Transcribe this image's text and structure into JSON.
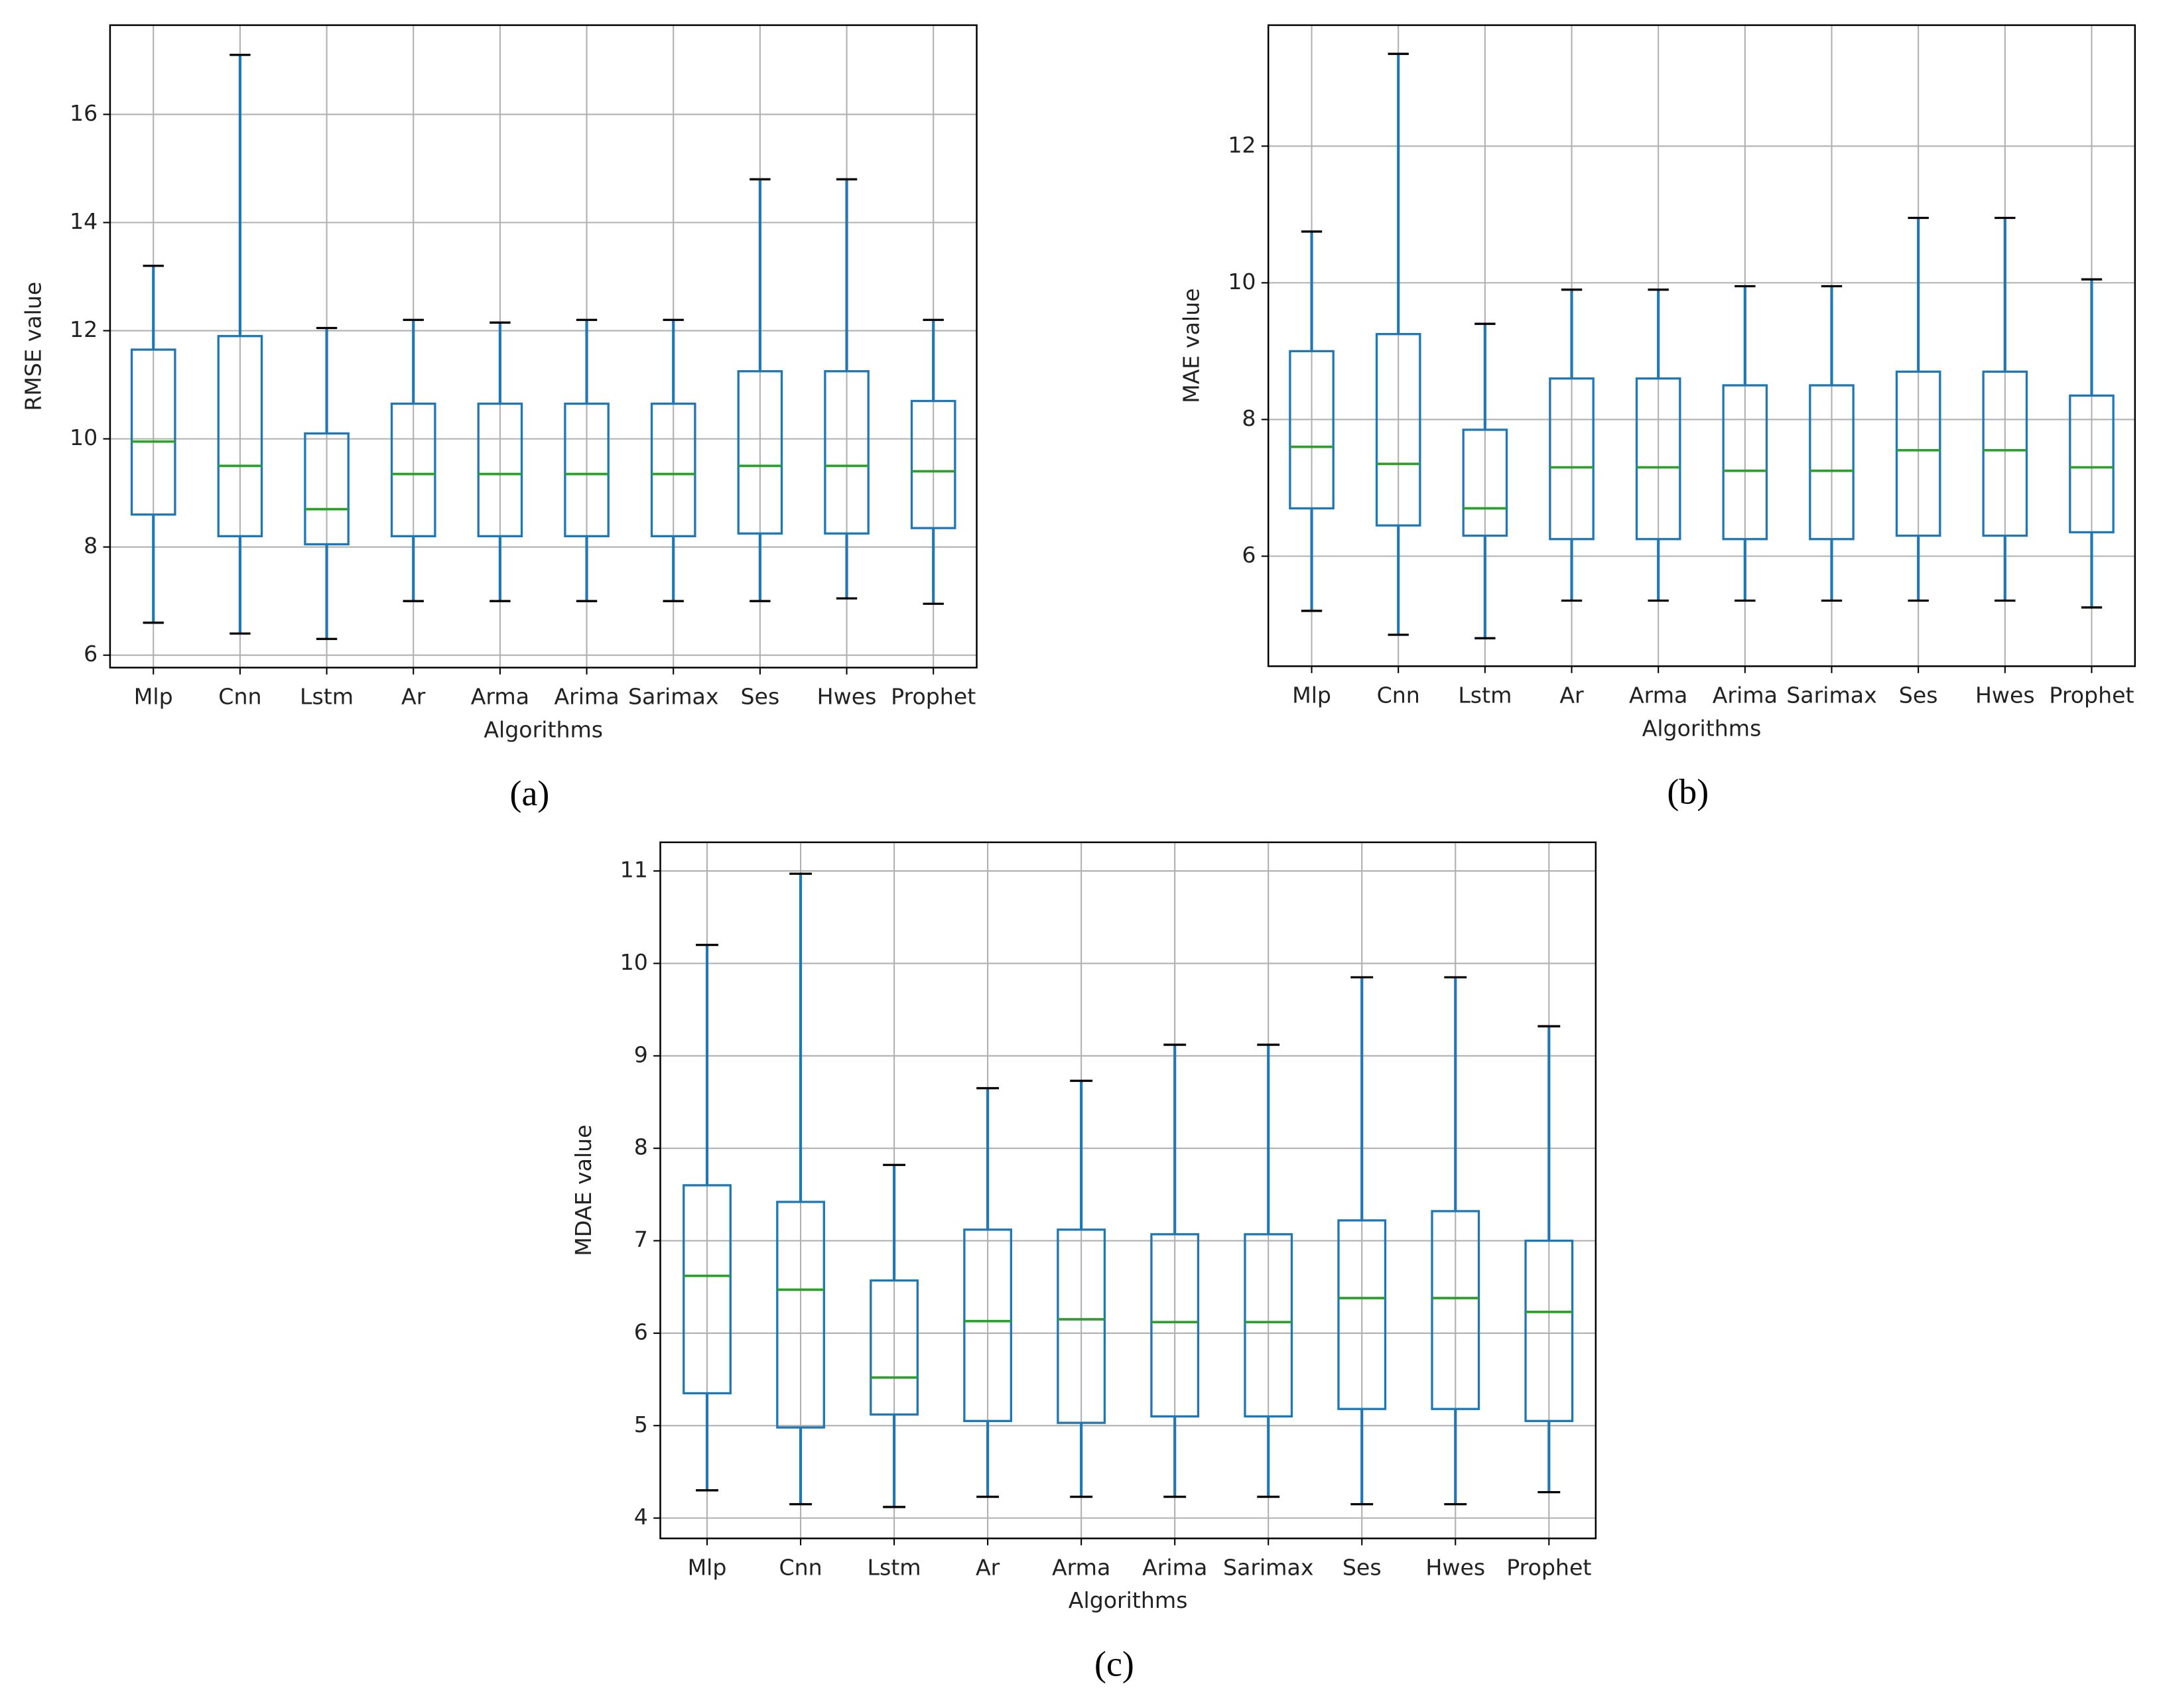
{
  "chart_data": [
    {
      "type": "box",
      "caption": "(a)",
      "ylabel": "RMSE value",
      "xlabel": "Algorithms",
      "categories": [
        "Mlp",
        "Cnn",
        "Lstm",
        "Ar",
        "Arma",
        "Arima",
        "Sarimax",
        "Ses",
        "Hwes",
        "Prophet"
      ],
      "boxes": [
        {
          "min": 6.6,
          "q1": 8.6,
          "median": 9.95,
          "q3": 11.65,
          "max": 13.2
        },
        {
          "min": 6.4,
          "q1": 8.2,
          "median": 9.5,
          "q3": 11.9,
          "max": 17.1
        },
        {
          "min": 6.3,
          "q1": 8.05,
          "median": 8.7,
          "q3": 10.1,
          "max": 12.05
        },
        {
          "min": 7.0,
          "q1": 8.2,
          "median": 9.35,
          "q3": 10.65,
          "max": 12.2
        },
        {
          "min": 7.0,
          "q1": 8.2,
          "median": 9.35,
          "q3": 10.65,
          "max": 12.15
        },
        {
          "min": 7.0,
          "q1": 8.2,
          "median": 9.35,
          "q3": 10.65,
          "max": 12.2
        },
        {
          "min": 7.0,
          "q1": 8.2,
          "median": 9.35,
          "q3": 10.65,
          "max": 12.2
        },
        {
          "min": 7.0,
          "q1": 8.25,
          "median": 9.5,
          "q3": 11.25,
          "max": 14.8
        },
        {
          "min": 7.05,
          "q1": 8.25,
          "median": 9.5,
          "q3": 11.25,
          "max": 14.8
        },
        {
          "min": 6.95,
          "q1": 8.35,
          "median": 9.4,
          "q3": 10.7,
          "max": 12.2
        }
      ],
      "ylim": [
        5.77,
        17.65
      ],
      "yticks": [
        6,
        8,
        10,
        12,
        14,
        16
      ],
      "grid": true,
      "color": "#1f77b4",
      "median_color": "#2ca02c",
      "cap_color": "#000000"
    },
    {
      "type": "box",
      "caption": "(b)",
      "ylabel": "MAE value",
      "xlabel": "Algorithms",
      "categories": [
        "Mlp",
        "Cnn",
        "Lstm",
        "Ar",
        "Arma",
        "Arima",
        "Sarimax",
        "Ses",
        "Hwes",
        "Prophet"
      ],
      "boxes": [
        {
          "min": 5.2,
          "q1": 6.7,
          "median": 7.6,
          "q3": 9.0,
          "max": 10.75
        },
        {
          "min": 4.85,
          "q1": 6.45,
          "median": 7.35,
          "q3": 9.25,
          "max": 13.35
        },
        {
          "min": 4.8,
          "q1": 6.3,
          "median": 6.7,
          "q3": 7.85,
          "max": 9.4
        },
        {
          "min": 5.35,
          "q1": 6.25,
          "median": 7.3,
          "q3": 8.6,
          "max": 9.9
        },
        {
          "min": 5.35,
          "q1": 6.25,
          "median": 7.3,
          "q3": 8.6,
          "max": 9.9
        },
        {
          "min": 5.35,
          "q1": 6.25,
          "median": 7.25,
          "q3": 8.5,
          "max": 9.95
        },
        {
          "min": 5.35,
          "q1": 6.25,
          "median": 7.25,
          "q3": 8.5,
          "max": 9.95
        },
        {
          "min": 5.35,
          "q1": 6.3,
          "median": 7.55,
          "q3": 8.7,
          "max": 10.95
        },
        {
          "min": 5.35,
          "q1": 6.3,
          "median": 7.55,
          "q3": 8.7,
          "max": 10.95
        },
        {
          "min": 5.25,
          "q1": 6.35,
          "median": 7.3,
          "q3": 8.35,
          "max": 10.05
        }
      ],
      "ylim": [
        4.39,
        13.77
      ],
      "yticks": [
        6,
        8,
        10,
        12
      ],
      "grid": true,
      "color": "#1f77b4",
      "median_color": "#2ca02c",
      "cap_color": "#000000"
    },
    {
      "type": "box",
      "caption": "(c)",
      "ylabel": "MDAE value",
      "xlabel": "Algorithms",
      "categories": [
        "Mlp",
        "Cnn",
        "Lstm",
        "Ar",
        "Arma",
        "Arima",
        "Sarimax",
        "Ses",
        "Hwes",
        "Prophet"
      ],
      "boxes": [
        {
          "min": 4.3,
          "q1": 5.35,
          "median": 6.62,
          "q3": 7.6,
          "max": 10.2
        },
        {
          "min": 4.15,
          "q1": 4.98,
          "median": 6.47,
          "q3": 7.42,
          "max": 10.97
        },
        {
          "min": 4.12,
          "q1": 5.12,
          "median": 5.52,
          "q3": 6.57,
          "max": 7.82
        },
        {
          "min": 4.23,
          "q1": 5.05,
          "median": 6.13,
          "q3": 7.12,
          "max": 8.65
        },
        {
          "min": 4.23,
          "q1": 5.03,
          "median": 6.15,
          "q3": 7.12,
          "max": 8.73
        },
        {
          "min": 4.23,
          "q1": 5.1,
          "median": 6.12,
          "q3": 7.07,
          "max": 9.12
        },
        {
          "min": 4.23,
          "q1": 5.1,
          "median": 6.12,
          "q3": 7.07,
          "max": 9.12
        },
        {
          "min": 4.15,
          "q1": 5.18,
          "median": 6.38,
          "q3": 7.22,
          "max": 9.85
        },
        {
          "min": 4.15,
          "q1": 5.18,
          "median": 6.38,
          "q3": 7.32,
          "max": 9.85
        },
        {
          "min": 4.28,
          "q1": 5.05,
          "median": 6.23,
          "q3": 7.0,
          "max": 9.32
        }
      ],
      "ylim": [
        3.78,
        11.31
      ],
      "yticks": [
        4,
        5,
        6,
        7,
        8,
        9,
        10,
        11
      ],
      "grid": true,
      "color": "#1f77b4",
      "median_color": "#2ca02c",
      "cap_color": "#000000"
    }
  ]
}
